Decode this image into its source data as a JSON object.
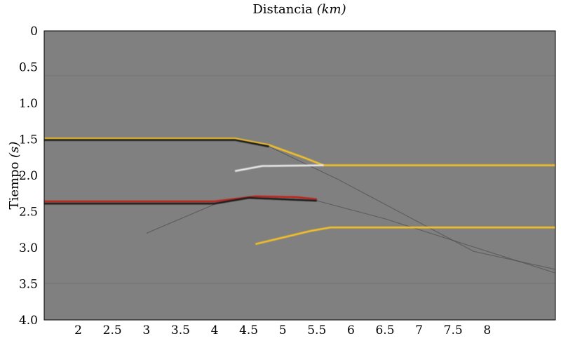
{
  "chart_data": {
    "type": "heatmap",
    "title": "Distancia",
    "title_unit": "(km)",
    "xlabel": "",
    "ylabel": "Tiempo",
    "ylabel_unit": "(s)",
    "xlim": [
      1.5,
      9.0
    ],
    "ylim": [
      0.0,
      4.0
    ],
    "y_inverted": true,
    "grid": false,
    "colormap": "seismic gray-red-yellow",
    "background_color": "#808080",
    "x_ticks": [
      2,
      2.5,
      3,
      3.5,
      4,
      4.5,
      5,
      5.5,
      6,
      6.5,
      7,
      7.5,
      8
    ],
    "x_tick_labels": [
      "2",
      "2.5",
      "3",
      "3.5",
      "4",
      "4.5",
      "5",
      "5.5",
      "6",
      "6.5",
      "7",
      "7.5",
      "8"
    ],
    "y_ticks": [
      0,
      0.5,
      1.0,
      1.5,
      2.0,
      2.5,
      3.0,
      3.5,
      4.0
    ],
    "y_tick_labels": [
      "0",
      "0.5",
      "1.0",
      "1.5",
      "2.0",
      "2.5",
      "3.0",
      "3.5",
      "4.0"
    ],
    "reflectors": [
      {
        "name": "",
        "points": [
          [
            1.5,
            1.49
          ],
          [
            4.3,
            1.49
          ],
          [
            4.8,
            1.58
          ],
          [
            5.3,
            1.75
          ],
          [
            5.6,
            1.86
          ],
          [
            9.0,
            1.86
          ]
        ],
        "color": "#f2c02a"
      },
      {
        "name": "",
        "points": [
          [
            1.5,
            1.51
          ],
          [
            4.3,
            1.51
          ],
          [
            4.8,
            1.6
          ]
        ],
        "color": "#1a1a1a"
      },
      {
        "name": "",
        "points": [
          [
            4.3,
            1.94
          ],
          [
            4.7,
            1.87
          ],
          [
            5.6,
            1.86
          ]
        ],
        "color": "#e8e8e8"
      },
      {
        "name": "",
        "points": [
          [
            1.5,
            2.36
          ],
          [
            4.0,
            2.36
          ],
          [
            4.6,
            2.29
          ],
          [
            5.2,
            2.3
          ],
          [
            5.5,
            2.33
          ]
        ],
        "color": "#c0201a"
      },
      {
        "name": "",
        "points": [
          [
            1.5,
            2.39
          ],
          [
            4.0,
            2.39
          ],
          [
            4.5,
            2.31
          ],
          [
            5.5,
            2.35
          ]
        ],
        "color": "#1a1a1a"
      },
      {
        "name": "",
        "points": [
          [
            4.6,
            2.95
          ],
          [
            5.4,
            2.77
          ],
          [
            5.7,
            2.72
          ],
          [
            9.0,
            2.72
          ]
        ],
        "color": "#f2c02a"
      },
      {
        "name": "",
        "points": [
          [
            5.7,
            2.7
          ],
          [
            9.0,
            2.7
          ]
        ],
        "color": "#1a1a1a"
      },
      {
        "name": "",
        "points": [
          [
            5.7,
            2.76
          ],
          [
            9.0,
            2.76
          ]
        ],
        "color": "#c0201a"
      }
    ],
    "diffractions": [
      {
        "points": [
          [
            4.8,
            1.6
          ],
          [
            5.8,
            2.05
          ],
          [
            6.8,
            2.55
          ],
          [
            7.8,
            3.05
          ],
          [
            9.0,
            3.3
          ]
        ]
      },
      {
        "points": [
          [
            5.5,
            2.35
          ],
          [
            6.5,
            2.6
          ],
          [
            7.5,
            2.9
          ],
          [
            9.0,
            3.35
          ]
        ]
      },
      {
        "points": [
          [
            3.0,
            2.8
          ],
          [
            3.5,
            2.6
          ],
          [
            4.0,
            2.4
          ]
        ]
      }
    ],
    "faint_lines_y": [
      0.62,
      3.5
    ]
  }
}
